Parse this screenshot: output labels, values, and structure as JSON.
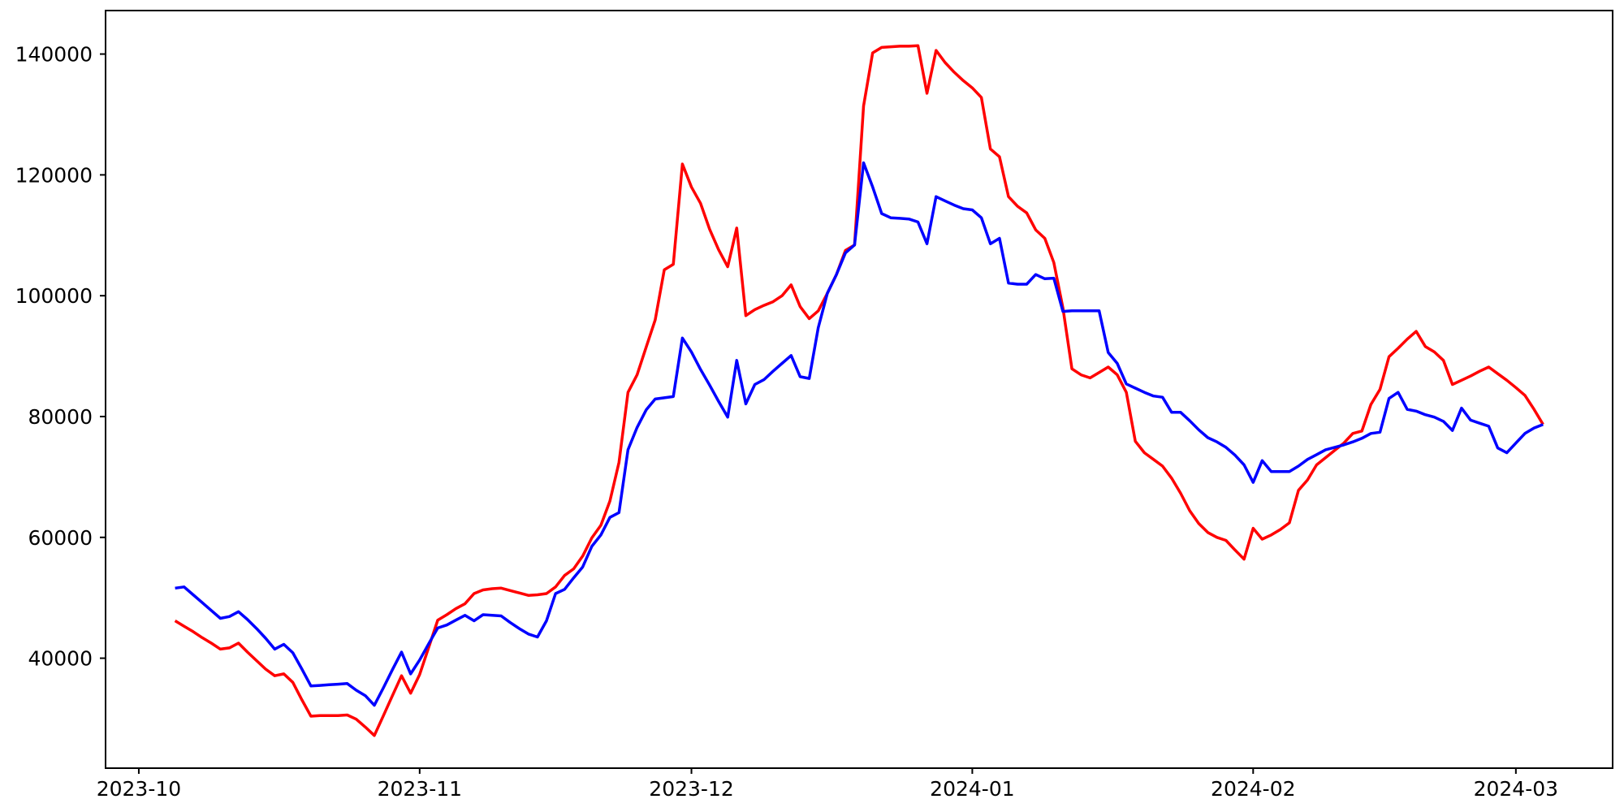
{
  "figure": {
    "background_color": "#ffffff",
    "grid": false,
    "legend": "none",
    "title": ""
  },
  "chart_data": {
    "type": "line",
    "title": "",
    "xlabel": "",
    "ylabel": "",
    "x_encoding": {
      "start_date": "2023-10-05",
      "step_days": 1,
      "count": 152
    },
    "xlim_days_from_2023_10_01": [
      -3.67,
      162.68
    ],
    "ylim": [
      21800,
      147200
    ],
    "x_ticks": [
      {
        "label": "2023-10",
        "day_offset": 0
      },
      {
        "label": "2023-11",
        "day_offset": 31
      },
      {
        "label": "2023-12",
        "day_offset": 61
      },
      {
        "label": "2024-01",
        "day_offset": 92
      },
      {
        "label": "2024-02",
        "day_offset": 123
      },
      {
        "label": "2024-03",
        "day_offset": 152
      }
    ],
    "y_ticks": [
      {
        "label": "40000",
        "value": 40000
      },
      {
        "label": "60000",
        "value": 60000
      },
      {
        "label": "80000",
        "value": 80000
      },
      {
        "label": "100000",
        "value": 100000
      },
      {
        "label": "120000",
        "value": 120000
      },
      {
        "label": "140000",
        "value": 140000
      }
    ],
    "series": [
      {
        "name": "red-series",
        "color": "#ff0000",
        "values": [
          46200,
          45300,
          44400,
          43400,
          42500,
          41500,
          41700,
          42500,
          41000,
          39600,
          38200,
          37100,
          37400,
          36000,
          33100,
          30400,
          30500,
          30500,
          30500,
          30600,
          29900,
          28600,
          27200,
          30500,
          33800,
          37100,
          34200,
          37300,
          41800,
          46300,
          47200,
          48200,
          49000,
          50700,
          51300,
          51500,
          51600,
          51200,
          50800,
          50400,
          50500,
          50700,
          51800,
          53700,
          54800,
          56900,
          59900,
          62000,
          66000,
          72400,
          84000,
          86900,
          91500,
          96000,
          104300,
          105200,
          121800,
          118000,
          115300,
          111000,
          107600,
          104800,
          111200,
          96700,
          97700,
          98400,
          99000,
          100000,
          101800,
          98200,
          96200,
          97500,
          100400,
          103500,
          107500,
          108400,
          131400,
          140200,
          141100,
          141200,
          141300,
          141300,
          141400,
          133500,
          140600,
          138600,
          137000,
          135600,
          134400,
          132800,
          124300,
          123000,
          116400,
          114800,
          113700,
          110900,
          109500,
          105500,
          98000,
          87900,
          86900,
          86400,
          87300,
          88200,
          86900,
          84000,
          75900,
          74000,
          72900,
          71800,
          69800,
          67300,
          64400,
          62300,
          60800,
          60000,
          59500,
          57900,
          56400,
          61500,
          59700,
          60400,
          61300,
          62400,
          67800,
          69500,
          72000,
          73200,
          74400,
          75600,
          77200,
          77600,
          82000,
          84500,
          89900,
          91300,
          92800,
          94100,
          91600,
          90700,
          89300,
          85300,
          86000,
          86700,
          87500,
          88200,
          87100,
          86000,
          84800,
          83500,
          81200,
          78700
        ]
      },
      {
        "name": "blue-series",
        "color": "#0000ff",
        "values": [
          51600,
          51800,
          50500,
          49200,
          47900,
          46600,
          46900,
          47700,
          46400,
          44900,
          43300,
          41500,
          42300,
          40900,
          38200,
          35400,
          35500,
          35600,
          35700,
          35800,
          34700,
          33800,
          32200,
          35100,
          38100,
          41000,
          37400,
          39700,
          42400,
          45000,
          45500,
          46300,
          47100,
          46200,
          47200,
          47100,
          47000,
          45900,
          44900,
          44000,
          43500,
          46200,
          50700,
          51400,
          53300,
          55100,
          58500,
          60400,
          63300,
          64100,
          74500,
          78200,
          81100,
          82900,
          83100,
          83300,
          93000,
          90700,
          87800,
          85200,
          82500,
          79900,
          89300,
          82100,
          85300,
          86100,
          87500,
          88800,
          90100,
          86600,
          86300,
          94700,
          100400,
          103500,
          107100,
          108400,
          122000,
          118000,
          113600,
          112900,
          112800,
          112700,
          112200,
          108600,
          116400,
          115700,
          115000,
          114400,
          114200,
          112900,
          108600,
          109500,
          102100,
          101900,
          101900,
          103500,
          102800,
          102900,
          97400,
          97500,
          97500,
          97500,
          97500,
          90600,
          88800,
          85400,
          84700,
          84000,
          83400,
          83200,
          80700,
          80700,
          79300,
          77800,
          76500,
          75800,
          74900,
          73600,
          72000,
          69100,
          72700,
          70900,
          70900,
          70900,
          71800,
          72900,
          73700,
          74500,
          74900,
          75300,
          75800,
          76400,
          77200,
          77400,
          83000,
          84000,
          81200,
          80900,
          80300,
          79900,
          79200,
          77700,
          81400,
          79400,
          78900,
          78400,
          74800,
          74000,
          75600,
          77200,
          78100,
          78700
        ]
      }
    ],
    "style": {
      "line_width": 3.5,
      "spine_color": "#000000",
      "spine_width": 2,
      "tick_length": 7,
      "tick_width": 2,
      "tick_label_font_px": 25
    }
  }
}
